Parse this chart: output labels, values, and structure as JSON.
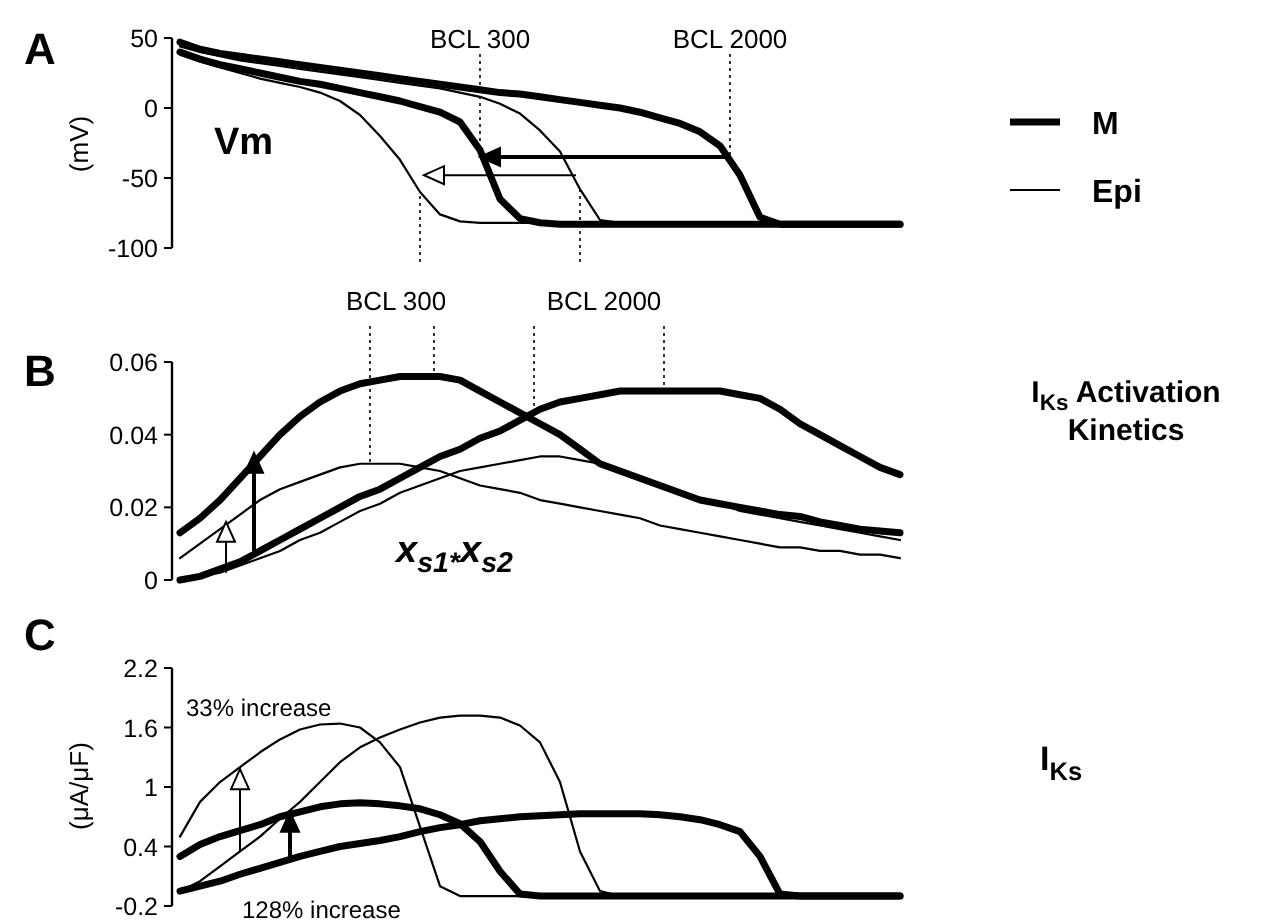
{
  "chart_data": [
    {
      "type": "line",
      "title": "A",
      "ylabel": "(mV)",
      "annotations": [
        "Vm",
        "BCL 300",
        "BCL 2000"
      ],
      "legend": "right",
      "tick_labels": "y",
      "ylim": [
        -100,
        50
      ],
      "yticks": [
        50,
        0,
        -50,
        -100
      ],
      "categories": [
        null,
        null,
        null,
        null,
        null,
        null,
        null,
        null,
        null,
        null,
        null,
        null,
        null,
        null,
        null,
        null,
        null,
        null,
        null,
        null,
        null,
        null,
        null,
        null,
        null,
        null,
        null,
        null,
        null,
        null,
        null,
        null,
        null,
        null,
        null,
        null,
        null
      ],
      "series": [
        {
          "name": "M",
          "color": "#000000",
          "values": [
            40,
            35,
            31,
            28,
            25,
            22,
            19,
            17,
            14,
            11,
            8,
            5,
            1,
            -3,
            -10,
            -30,
            -65,
            -79,
            -82,
            -83,
            -83,
            -83,
            -83,
            -83,
            -83,
            -83,
            -83,
            -83,
            -83,
            -83,
            -83,
            -83,
            -83,
            -83,
            -83,
            -83,
            -83
          ]
        },
        {
          "color": "#000000",
          "values": [
            47,
            42,
            39,
            37,
            35,
            33,
            31,
            29,
            27,
            25,
            23,
            21,
            19,
            17,
            15,
            13,
            11,
            10,
            8,
            6,
            4,
            2,
            0,
            -3,
            -7,
            -11,
            -17,
            -27,
            -48,
            -78,
            -83,
            -83,
            -83,
            -83,
            -83,
            -83,
            -83
          ]
        },
        {
          "name": "Epi",
          "color": "#000000",
          "values": [
            38,
            33,
            29,
            25,
            21,
            18,
            15,
            11,
            5,
            -5,
            -20,
            -37,
            -60,
            -76,
            -81,
            -82,
            -82,
            -82,
            -82,
            -82,
            -82,
            -82,
            -82,
            -82,
            -82,
            -82,
            -82,
            -82,
            -82,
            -82,
            -82,
            -82,
            -82,
            -82,
            -82,
            -82,
            -82
          ]
        },
        {
          "color": "#000000",
          "values": [
            44,
            40,
            37,
            34,
            32,
            30,
            28,
            26,
            24,
            22,
            20,
            18,
            16,
            14,
            11,
            8,
            3,
            -4,
            -16,
            -31,
            -58,
            -80,
            -82,
            -82,
            -82,
            -82,
            -82,
            -82,
            -82,
            -82,
            -82,
            -82,
            -82,
            -82,
            -82,
            -82,
            -82
          ]
        }
      ]
    },
    {
      "type": "line",
      "title": "B",
      "annotations": [
        "x$_{s1*}$x$_{s2}$",
        "I$_{Ks}$ Activation Kinetics",
        "BCL 300",
        "BCL 2000"
      ],
      "tick_labels": "y",
      "ylim": [
        0,
        0.06
      ],
      "yticks": [
        0,
        0.02,
        0.04,
        0.06
      ],
      "categories": [
        null,
        null,
        null,
        null,
        null,
        null,
        null,
        null,
        null,
        null,
        null,
        null,
        null,
        null,
        null,
        null,
        null,
        null,
        null,
        null,
        null,
        null,
        null,
        null,
        null,
        null,
        null,
        null,
        null,
        null,
        null,
        null,
        null,
        null,
        null,
        null,
        null
      ],
      "series": [
        {
          "color": "#000000",
          "values": [
            0.013,
            0.017,
            0.022,
            0.028,
            0.034,
            0.04,
            0.045,
            0.049,
            0.052,
            0.054,
            0.055,
            0.056,
            0.056,
            0.056,
            0.055,
            0.052,
            0.049,
            0.046,
            0.043,
            0.04,
            0.036,
            0.032,
            0.03,
            0.028,
            0.026,
            0.024,
            0.022,
            0.021,
            0.02,
            0.019,
            0.018,
            0.0175,
            0.016,
            0.015,
            0.014,
            0.0135,
            0.013
          ]
        },
        {
          "color": "#000000",
          "values": [
            0,
            0.001,
            0.003,
            0.005,
            0.008,
            0.011,
            0.014,
            0.017,
            0.02,
            0.023,
            0.025,
            0.028,
            0.031,
            0.034,
            0.036,
            0.039,
            0.041,
            0.044,
            0.047,
            0.049,
            0.05,
            0.051,
            0.052,
            0.052,
            0.052,
            0.052,
            0.052,
            0.052,
            0.051,
            0.05,
            0.047,
            0.043,
            0.04,
            0.037,
            0.034,
            0.031,
            0.029
          ]
        },
        {
          "color": "#000000",
          "values": [
            0.006,
            0.01,
            0.014,
            0.018,
            0.022,
            0.025,
            0.027,
            0.029,
            0.031,
            0.032,
            0.032,
            0.032,
            0.031,
            0.03,
            0.028,
            0.026,
            0.025,
            0.024,
            0.022,
            0.021,
            0.02,
            0.019,
            0.018,
            0.017,
            0.015,
            0.014,
            0.013,
            0.012,
            0.011,
            0.01,
            0.009,
            0.009,
            0.008,
            0.008,
            0.007,
            0.007,
            0.006
          ]
        },
        {
          "color": "#000000",
          "values": [
            0,
            0.001,
            0.002,
            0.004,
            0.006,
            0.008,
            0.011,
            0.013,
            0.016,
            0.019,
            0.021,
            0.024,
            0.026,
            0.028,
            0.03,
            0.031,
            0.032,
            0.033,
            0.034,
            0.034,
            0.033,
            0.032,
            0.03,
            0.028,
            0.026,
            0.024,
            0.022,
            0.021,
            0.019,
            0.018,
            0.017,
            0.016,
            0.015,
            0.014,
            0.013,
            0.012,
            0.011
          ]
        }
      ]
    },
    {
      "type": "line",
      "title": "C",
      "ylabel": "(μA/μF)",
      "annotations": [
        "33% increase",
        "128% increase",
        "I$_{Ks}$"
      ],
      "tick_labels": "y",
      "ylim": [
        -0.2,
        2.2
      ],
      "yticks": [
        -0.2,
        0.4,
        1,
        1.6,
        2.2
      ],
      "categories": [
        null,
        null,
        null,
        null,
        null,
        null,
        null,
        null,
        null,
        null,
        null,
        null,
        null,
        null,
        null,
        null,
        null,
        null,
        null,
        null,
        null,
        null,
        null,
        null,
        null,
        null,
        null,
        null,
        null,
        null,
        null,
        null,
        null,
        null,
        null,
        null,
        null
      ],
      "series": [
        {
          "color": "#000000",
          "values": [
            0.3,
            0.42,
            0.5,
            0.56,
            0.62,
            0.7,
            0.75,
            0.8,
            0.83,
            0.84,
            0.83,
            0.81,
            0.78,
            0.72,
            0.63,
            0.45,
            0.15,
            -0.08,
            -0.1,
            -0.1,
            -0.1,
            -0.1,
            -0.1,
            -0.1,
            -0.1,
            -0.1,
            -0.1,
            -0.1,
            -0.1,
            -0.1,
            -0.1,
            -0.1,
            -0.1,
            -0.1,
            -0.1,
            -0.1,
            -0.1
          ]
        },
        {
          "color": "#000000",
          "values": [
            -0.05,
            0,
            0.05,
            0.12,
            0.18,
            0.24,
            0.3,
            0.35,
            0.4,
            0.43,
            0.46,
            0.5,
            0.55,
            0.59,
            0.62,
            0.66,
            0.68,
            0.7,
            0.71,
            0.72,
            0.73,
            0.73,
            0.73,
            0.73,
            0.72,
            0.7,
            0.67,
            0.62,
            0.55,
            0.3,
            -0.08,
            -0.1,
            -0.1,
            -0.1,
            -0.1,
            -0.1,
            -0.1
          ]
        },
        {
          "color": "#000000",
          "values": [
            0.5,
            0.85,
            1.05,
            1.2,
            1.35,
            1.48,
            1.58,
            1.63,
            1.64,
            1.6,
            1.45,
            1.2,
            0.6,
            0,
            -0.1,
            -0.1,
            -0.1,
            -0.1,
            -0.1,
            -0.1,
            -0.1,
            -0.1,
            -0.1,
            -0.1,
            -0.1,
            -0.1,
            -0.1,
            -0.1,
            -0.1,
            -0.1,
            -0.1,
            -0.1,
            -0.1,
            -0.1,
            -0.1,
            -0.1,
            -0.1
          ]
        },
        {
          "color": "#000000",
          "values": [
            -0.05,
            0.05,
            0.2,
            0.35,
            0.5,
            0.68,
            0.85,
            1.05,
            1.25,
            1.4,
            1.5,
            1.58,
            1.65,
            1.7,
            1.72,
            1.72,
            1.7,
            1.62,
            1.45,
            1.05,
            0.35,
            -0.05,
            -0.1,
            -0.1,
            -0.1,
            -0.1,
            -0.1,
            -0.1,
            -0.1,
            -0.1,
            -0.1,
            -0.1,
            -0.1,
            -0.1,
            -0.1,
            -0.1,
            -0.1
          ]
        }
      ]
    }
  ]
}
